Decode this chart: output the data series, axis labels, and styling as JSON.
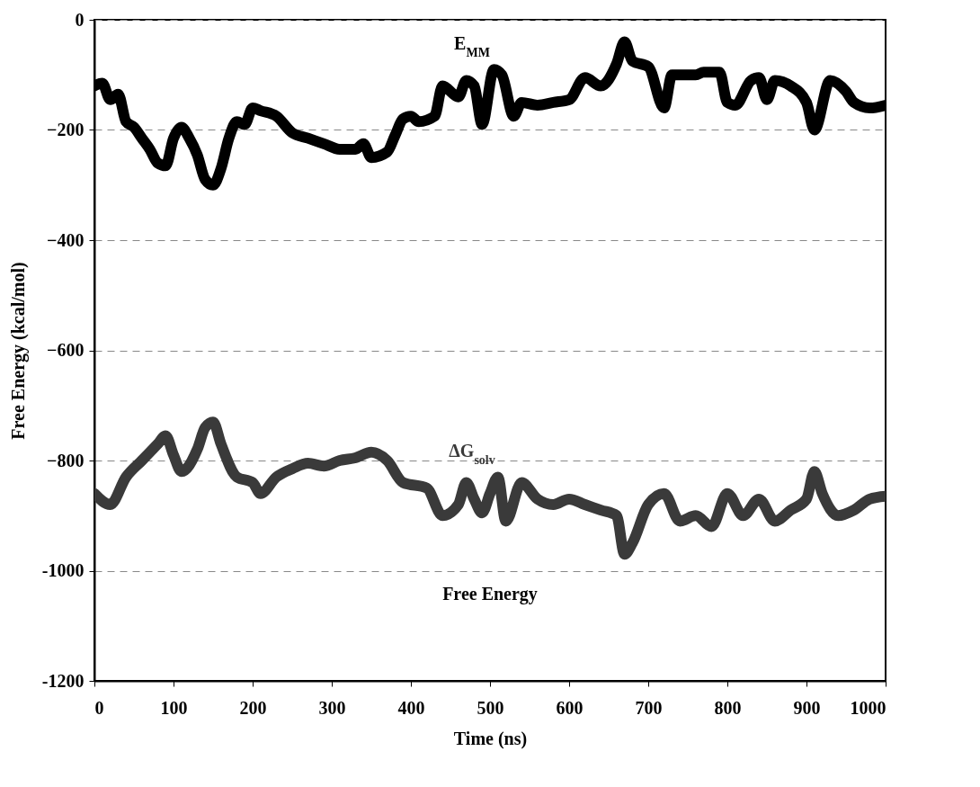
{
  "chart_data": {
    "type": "line",
    "xlabel": "Time (ns)",
    "ylabel": "Free Energy (kcal/mol)",
    "xlim": [
      0,
      1000
    ],
    "xticks": [
      0,
      100,
      200,
      300,
      400,
      500,
      600,
      700,
      800,
      900,
      {
        "value": 1000,
        "label": "1000"
      }
    ],
    "ylim": [
      -1200,
      0
    ],
    "yticks": [
      {
        "value": -1200,
        "label": "-1200"
      },
      {
        "value": -1000,
        "label": "-1000"
      },
      -800,
      -600,
      -400,
      -200,
      0
    ],
    "grid": "y",
    "line_style": "solid",
    "x": [
      0,
      10,
      20,
      30,
      40,
      50,
      60,
      70,
      80,
      90,
      100,
      110,
      120,
      130,
      140,
      150,
      160,
      170,
      180,
      190,
      200,
      210,
      230,
      250,
      270,
      290,
      310,
      330,
      340,
      350,
      370,
      380,
      390,
      400,
      410,
      430,
      440,
      460,
      470,
      480,
      490,
      505,
      515,
      530,
      540,
      560,
      580,
      600,
      620,
      640,
      660,
      670,
      680,
      700,
      720,
      730,
      760,
      770,
      790,
      800,
      810,
      830,
      840,
      850,
      860,
      880,
      900,
      910,
      930,
      950,
      960,
      980,
      1000
    ],
    "series": [
      {
        "name": "E$_{MM}$",
        "color": "#000000",
        "values": [
          -120,
          -115,
          -145,
          -135,
          -185,
          -195,
          -215,
          -235,
          -260,
          -265,
          -215,
          -195,
          -215,
          -245,
          -290,
          -300,
          -270,
          -215,
          -185,
          -190,
          -160,
          -165,
          -175,
          -205,
          -215,
          -225,
          -235,
          -235,
          -225,
          -250,
          -240,
          -210,
          -180,
          -175,
          -185,
          -175,
          -120,
          -140,
          -110,
          -120,
          -190,
          -90,
          -100,
          -175,
          -150,
          -155,
          -150,
          -145,
          -105,
          -120,
          -80,
          -40,
          -75,
          -85,
          -160,
          -100,
          -100,
          -95,
          -95,
          -150,
          -155,
          -110,
          -105,
          -145,
          -110,
          -120,
          -150,
          -200,
          -110,
          -130,
          -150,
          -160,
          -155
        ]
      },
      {
        "name": "ΔG$_{solv}$",
        "color": "#3a3a3a",
        "x": [
          0,
          20,
          40,
          60,
          80,
          90,
          100,
          110,
          130,
          140,
          150,
          160,
          180,
          200,
          210,
          230,
          250,
          270,
          290,
          310,
          330,
          350,
          370,
          390,
          420,
          440,
          460,
          470,
          480,
          490,
          500,
          510,
          520,
          540,
          560,
          580,
          600,
          620,
          640,
          660,
          670,
          680,
          700,
          720,
          740,
          760,
          780,
          800,
          820,
          840,
          860,
          880,
          900,
          910,
          920,
          940,
          960,
          980,
          1000
        ],
        "values": [
          -860,
          -880,
          -830,
          -800,
          -770,
          -755,
          -790,
          -820,
          -780,
          -740,
          -730,
          -770,
          -830,
          -840,
          -860,
          -830,
          -815,
          -805,
          -810,
          -800,
          -795,
          -785,
          -800,
          -840,
          -850,
          -900,
          -880,
          -840,
          -870,
          -895,
          -860,
          -830,
          -910,
          -840,
          -870,
          -880,
          -870,
          -880,
          -890,
          -900,
          -970,
          -950,
          -880,
          -860,
          -910,
          -900,
          -920,
          -860,
          -900,
          -870,
          -910,
          -890,
          -870,
          -820,
          -860,
          -900,
          -890,
          -870,
          -865
        ]
      }
    ],
    "annotations": [
      "Free Energy"
    ]
  }
}
